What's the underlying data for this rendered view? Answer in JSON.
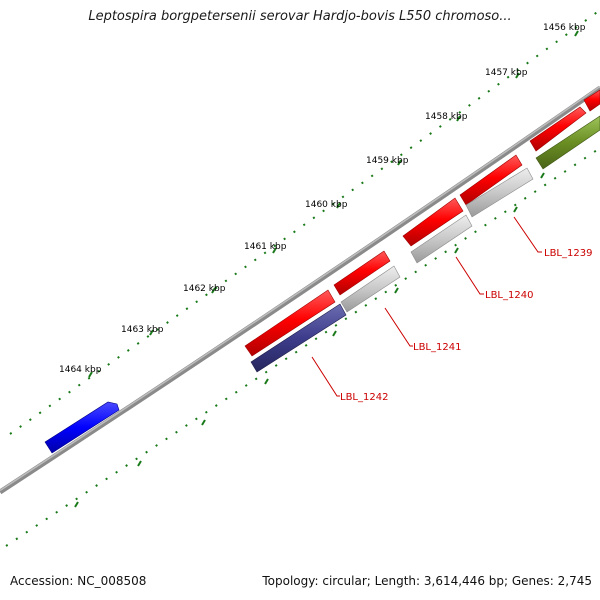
{
  "header": {
    "title": "Leptospira borgpetersenii serovar Hardjo-bovis L550 chromoso..."
  },
  "footer": {
    "accession": "Accession: NC_008508",
    "summary": "Topology: circular; Length: 3,614,446 bp; Genes: 2,745"
  },
  "ticks": [
    {
      "label": "1456 kbp"
    },
    {
      "label": "1457 kbp"
    },
    {
      "label": "1458 kbp"
    },
    {
      "label": "1459 kbp"
    },
    {
      "label": "1460 kbp"
    },
    {
      "label": "1461 kbp"
    },
    {
      "label": "1462 kbp"
    },
    {
      "label": "1463 kbp"
    },
    {
      "label": "1464 kbp"
    }
  ],
  "genes": [
    {
      "label": "LBL_1239"
    },
    {
      "label": "LBL_1240"
    },
    {
      "label": "LBL_1241"
    },
    {
      "label": "LBL_1242"
    }
  ],
  "colors": {
    "backbone": "#808080",
    "tick_mark": "#1a7a1a",
    "forward_gene": "#ff0000",
    "reverse_gene": "#c8c8c8",
    "highlight_gene": "#3c3c8c",
    "blue_gene": "#0000ff",
    "olive_gene": "#6b8e23",
    "label_text": "#cc0000"
  }
}
